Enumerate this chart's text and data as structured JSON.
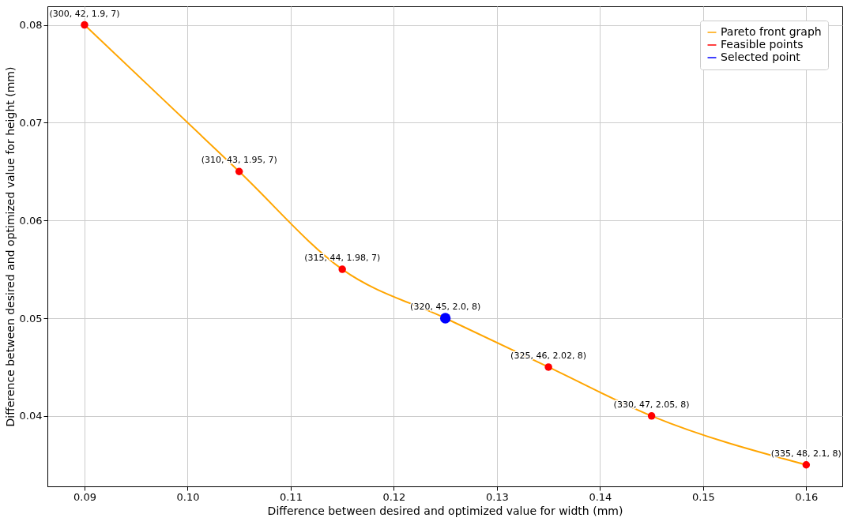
{
  "chart_data": {
    "type": "scatter",
    "xlabel": "Difference between desired and optimized value for width (mm)",
    "ylabel": "Difference between desired and optimized value for height (mm)",
    "xlim": [
      0.0864,
      0.1635
    ],
    "ylim": [
      0.0328,
      0.0819
    ],
    "xticks": [
      0.09,
      {
        "value": 0.1,
        "label": "0.10"
      },
      0.11,
      0.12,
      0.13,
      0.14,
      0.15,
      0.16
    ],
    "yticks": [
      0.04,
      0.05,
      0.06,
      0.07,
      0.08
    ],
    "series": [
      {
        "name": "Pareto front graph",
        "type": "line",
        "color": "#ffa500",
        "marker": "none",
        "x": [
          0.09,
          0.105,
          0.115,
          0.125,
          0.135,
          0.145,
          0.16
        ],
        "values": [
          0.08,
          0.065,
          0.055,
          0.05,
          0.045,
          0.04,
          0.035
        ]
      },
      {
        "name": "Feasible points",
        "color": "#ff0000",
        "marker": "circle",
        "x": [
          0.09,
          0.105,
          0.115,
          0.135,
          0.145,
          0.16
        ],
        "values": [
          0.08,
          0.065,
          0.055,
          0.045,
          0.04,
          0.035
        ]
      },
      {
        "name": "Selected point",
        "color": "#0000ff",
        "marker": "circle",
        "x": [
          0.125
        ],
        "values": [
          0.05
        ]
      }
    ],
    "annotations": [
      {
        "text": "(300, 42, 1.9, 7)",
        "x": 0.09,
        "y": 0.08
      },
      {
        "text": "(310, 43, 1.95, 7)",
        "x": 0.105,
        "y": 0.065
      },
      {
        "text": "(315, 44, 1.98, 7)",
        "x": 0.115,
        "y": 0.055
      },
      {
        "text": "(320, 45, 2.0, 8)",
        "x": 0.125,
        "y": 0.05
      },
      {
        "text": "(325, 46, 2.02, 8)",
        "x": 0.135,
        "y": 0.045
      },
      {
        "text": "(330, 47, 2.05, 8)",
        "x": 0.145,
        "y": 0.04
      },
      {
        "text": "(335, 48, 2.1, 8)",
        "x": 0.16,
        "y": 0.035
      }
    ],
    "grid": true,
    "legend": "top right"
  }
}
